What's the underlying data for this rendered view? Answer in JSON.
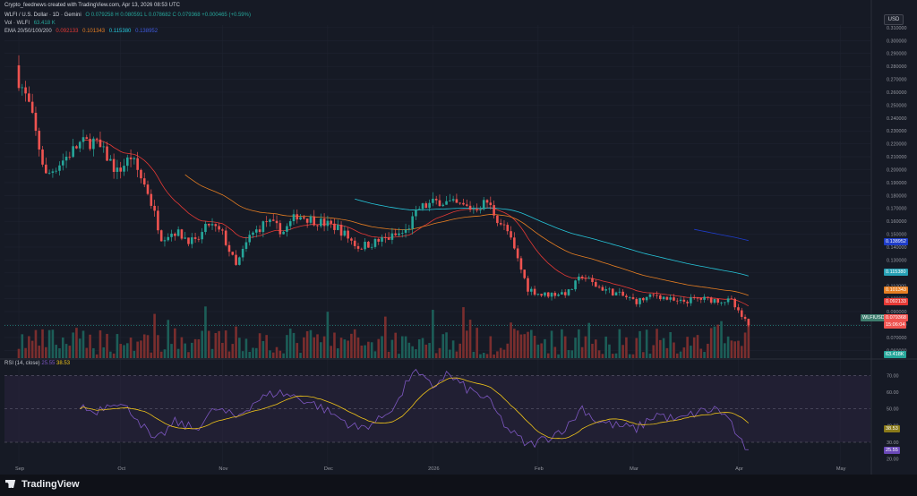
{
  "header": {
    "creator_line": "Crypto_feednews created with TradingView.com, Apr 13, 2026 08:53 UTC",
    "symbol_title": "WLFI / U.S. Dollar · 1D · Gemini",
    "ohlc": "O 0.079258  H 0.080591  L 0.078682  C 0.079368  +0.000465 (+0.59%)",
    "vol_label": "Vol · WLFI",
    "vol_value": "63.418 K",
    "ema_label": "EMA 20/50/100/200",
    "ema_values": [
      "0.092133",
      "0.101343",
      "0.115380",
      "0.138952"
    ],
    "rsi_label": "RSI (14, close)",
    "rsi_values": [
      "25.55",
      "38.53"
    ]
  },
  "currency_button": "USD",
  "price_badges": {
    "ema200": "0.138952",
    "ema100": "0.115380",
    "ema50": "0.101343",
    "ema20": "0.092133",
    "symbol": "WLFIUSD",
    "last": "0.079368",
    "countdown": "15:06:04",
    "volume": "63.418K",
    "rsi_ma": "38.53",
    "rsi": "25.55"
  },
  "colors": {
    "background": "#161a25",
    "up": "#26a69a",
    "down": "#ef5350",
    "ema20": "#e53935",
    "ema50": "#e67e22",
    "ema100": "#26c6da",
    "ema200": "#1e3cc8",
    "rsi": "#7e57c2",
    "rsi_ma": "#f0c419",
    "rsi_band": "#2b2540"
  },
  "footer": {
    "brand": "TradingView"
  },
  "chart_data": [
    {
      "type": "candlestick",
      "title": "WLFI / U.S. Dollar · 1D · Gemini",
      "x_tick_labels": [
        "Sep",
        "Oct",
        "Nov",
        "Dec",
        "2026",
        "Feb",
        "Mar",
        "Apr",
        "May"
      ],
      "y_tick_labels": [
        "0.060000",
        "0.070000",
        "0.080000",
        "0.090000",
        "0.100000",
        "0.110000",
        "0.120000",
        "0.130000",
        "0.140000",
        "0.150000",
        "0.160000",
        "0.170000",
        "0.180000",
        "0.190000",
        "0.200000",
        "0.210000",
        "0.220000",
        "0.230000",
        "0.240000",
        "0.250000",
        "0.260000",
        "0.270000",
        "0.280000",
        "0.290000",
        "0.300000",
        "0.310000"
      ],
      "ylim": [
        0.054,
        0.312
      ],
      "anchors": [
        {
          "day": 0,
          "price": 0.27
        },
        {
          "day": 3,
          "price": 0.25
        },
        {
          "day": 8,
          "price": 0.195
        },
        {
          "day": 12,
          "price": 0.205
        },
        {
          "day": 18,
          "price": 0.22
        },
        {
          "day": 22,
          "price": 0.222
        },
        {
          "day": 26,
          "price": 0.21
        },
        {
          "day": 29,
          "price": 0.198
        },
        {
          "day": 33,
          "price": 0.21
        },
        {
          "day": 38,
          "price": 0.183
        },
        {
          "day": 42,
          "price": 0.148
        },
        {
          "day": 46,
          "price": 0.152
        },
        {
          "day": 52,
          "price": 0.143
        },
        {
          "day": 56,
          "price": 0.158
        },
        {
          "day": 60,
          "price": 0.15
        },
        {
          "day": 64,
          "price": 0.125
        },
        {
          "day": 68,
          "price": 0.148
        },
        {
          "day": 73,
          "price": 0.16
        },
        {
          "day": 78,
          "price": 0.152
        },
        {
          "day": 82,
          "price": 0.165
        },
        {
          "day": 88,
          "price": 0.16
        },
        {
          "day": 94,
          "price": 0.155
        },
        {
          "day": 100,
          "price": 0.14
        },
        {
          "day": 104,
          "price": 0.143
        },
        {
          "day": 110,
          "price": 0.148
        },
        {
          "day": 114,
          "price": 0.152
        },
        {
          "day": 118,
          "price": 0.17
        },
        {
          "day": 124,
          "price": 0.176
        },
        {
          "day": 128,
          "price": 0.173
        },
        {
          "day": 134,
          "price": 0.17
        },
        {
          "day": 138,
          "price": 0.175
        },
        {
          "day": 141,
          "price": 0.162
        },
        {
          "day": 144,
          "price": 0.152
        },
        {
          "day": 147,
          "price": 0.13
        },
        {
          "day": 150,
          "price": 0.108
        },
        {
          "day": 154,
          "price": 0.103
        },
        {
          "day": 158,
          "price": 0.104
        },
        {
          "day": 162,
          "price": 0.105
        },
        {
          "day": 166,
          "price": 0.118
        },
        {
          "day": 170,
          "price": 0.11
        },
        {
          "day": 176,
          "price": 0.104
        },
        {
          "day": 182,
          "price": 0.098
        },
        {
          "day": 188,
          "price": 0.103
        },
        {
          "day": 194,
          "price": 0.097
        },
        {
          "day": 200,
          "price": 0.1
        },
        {
          "day": 206,
          "price": 0.099
        },
        {
          "day": 210,
          "price": 0.098
        },
        {
          "day": 212,
          "price": 0.089
        },
        {
          "day": 215,
          "price": 0.0794
        }
      ],
      "last_price": 0.079368
    },
    {
      "type": "bar",
      "title": "Vol · WLFI",
      "last_value": "63.418K"
    },
    {
      "type": "line",
      "title": "RSI (14, close)",
      "y_tick_labels": [
        "20.00",
        "30.00",
        "40.00",
        "50.00",
        "60.00",
        "70.00"
      ],
      "ylim": [
        15,
        75
      ],
      "band": [
        30,
        70
      ],
      "anchors": [
        {
          "day": 18,
          "rsi": 52
        },
        {
          "day": 22,
          "rsi": 48
        },
        {
          "day": 28,
          "rsi": 55
        },
        {
          "day": 34,
          "rsi": 47
        },
        {
          "day": 40,
          "rsi": 30
        },
        {
          "day": 46,
          "rsi": 42
        },
        {
          "day": 52,
          "rsi": 38
        },
        {
          "day": 58,
          "rsi": 50
        },
        {
          "day": 64,
          "rsi": 45
        },
        {
          "day": 70,
          "rsi": 55
        },
        {
          "day": 76,
          "rsi": 60
        },
        {
          "day": 82,
          "rsi": 57
        },
        {
          "day": 88,
          "rsi": 52
        },
        {
          "day": 94,
          "rsi": 45
        },
        {
          "day": 100,
          "rsi": 38
        },
        {
          "day": 106,
          "rsi": 43
        },
        {
          "day": 112,
          "rsi": 55
        },
        {
          "day": 116,
          "rsi": 73
        },
        {
          "day": 122,
          "rsi": 63
        },
        {
          "day": 126,
          "rsi": 71
        },
        {
          "day": 132,
          "rsi": 62
        },
        {
          "day": 138,
          "rsi": 56
        },
        {
          "day": 144,
          "rsi": 38
        },
        {
          "day": 150,
          "rsi": 28
        },
        {
          "day": 156,
          "rsi": 33
        },
        {
          "day": 162,
          "rsi": 40
        },
        {
          "day": 166,
          "rsi": 51
        },
        {
          "day": 170,
          "rsi": 43
        },
        {
          "day": 176,
          "rsi": 40
        },
        {
          "day": 182,
          "rsi": 38
        },
        {
          "day": 188,
          "rsi": 47
        },
        {
          "day": 194,
          "rsi": 43
        },
        {
          "day": 200,
          "rsi": 48
        },
        {
          "day": 206,
          "rsi": 50
        },
        {
          "day": 210,
          "rsi": 42
        },
        {
          "day": 212,
          "rsi": 31
        },
        {
          "day": 215,
          "rsi": 25.55
        }
      ],
      "last_value": 25.55,
      "ma_last_value": 38.53
    }
  ]
}
